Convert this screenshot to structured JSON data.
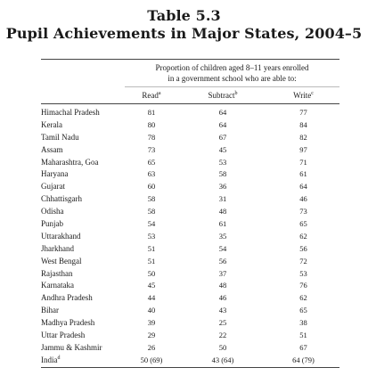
{
  "title": {
    "line1": "Table 5.3",
    "line2": "Pupil Achievements in Major States, 2004–5"
  },
  "table": {
    "spanner_line1": "Proportion of children aged 8–11 years enrolled",
    "spanner_line2": "in a government school who are able to:",
    "columns": {
      "read": "Read",
      "read_mark": "a",
      "subtract": "Subtract",
      "subtract_mark": "b",
      "write": "Write",
      "write_mark": "c"
    },
    "rows": [
      {
        "state": "Himachal Pradesh",
        "read": "81",
        "subtract": "64",
        "write": "77"
      },
      {
        "state": "Kerala",
        "read": "80",
        "subtract": "64",
        "write": "84"
      },
      {
        "state": "Tamil Nadu",
        "read": "78",
        "subtract": "67",
        "write": "82"
      },
      {
        "state": "Assam",
        "read": "73",
        "subtract": "45",
        "write": "97"
      },
      {
        "state": "Maharashtra, Goa",
        "read": "65",
        "subtract": "53",
        "write": "71"
      },
      {
        "state": "Haryana",
        "read": "63",
        "subtract": "58",
        "write": "61"
      },
      {
        "state": "Gujarat",
        "read": "60",
        "subtract": "36",
        "write": "64"
      },
      {
        "state": "Chhattisgarh",
        "read": "58",
        "subtract": "31",
        "write": "46"
      },
      {
        "state": "Odisha",
        "read": "58",
        "subtract": "48",
        "write": "73"
      },
      {
        "state": "Punjab",
        "read": "54",
        "subtract": "61",
        "write": "65"
      },
      {
        "state": "Uttarakhand",
        "read": "53",
        "subtract": "35",
        "write": "62"
      },
      {
        "state": "Jharkhand",
        "read": "51",
        "subtract": "54",
        "write": "56"
      },
      {
        "state": "West Bengal",
        "read": "51",
        "subtract": "56",
        "write": "72"
      },
      {
        "state": "Rajasthan",
        "read": "50",
        "subtract": "37",
        "write": "53"
      },
      {
        "state": "Karnataka",
        "read": "45",
        "subtract": "48",
        "write": "76"
      },
      {
        "state": "Andhra Pradesh",
        "read": "44",
        "subtract": "46",
        "write": "62"
      },
      {
        "state": "Bihar",
        "read": "40",
        "subtract": "43",
        "write": "65"
      },
      {
        "state": "Madhya Pradesh",
        "read": "39",
        "subtract": "25",
        "write": "38"
      },
      {
        "state": "Uttar Pradesh",
        "read": "29",
        "subtract": "22",
        "write": "51"
      },
      {
        "state": "Jammu & Kashmir",
        "read": "26",
        "subtract": "50",
        "write": "67"
      },
      {
        "state": "India",
        "state_mark": "d",
        "read": "50 (69)",
        "subtract": "43 (64)",
        "write": "64 (79)"
      }
    ]
  }
}
